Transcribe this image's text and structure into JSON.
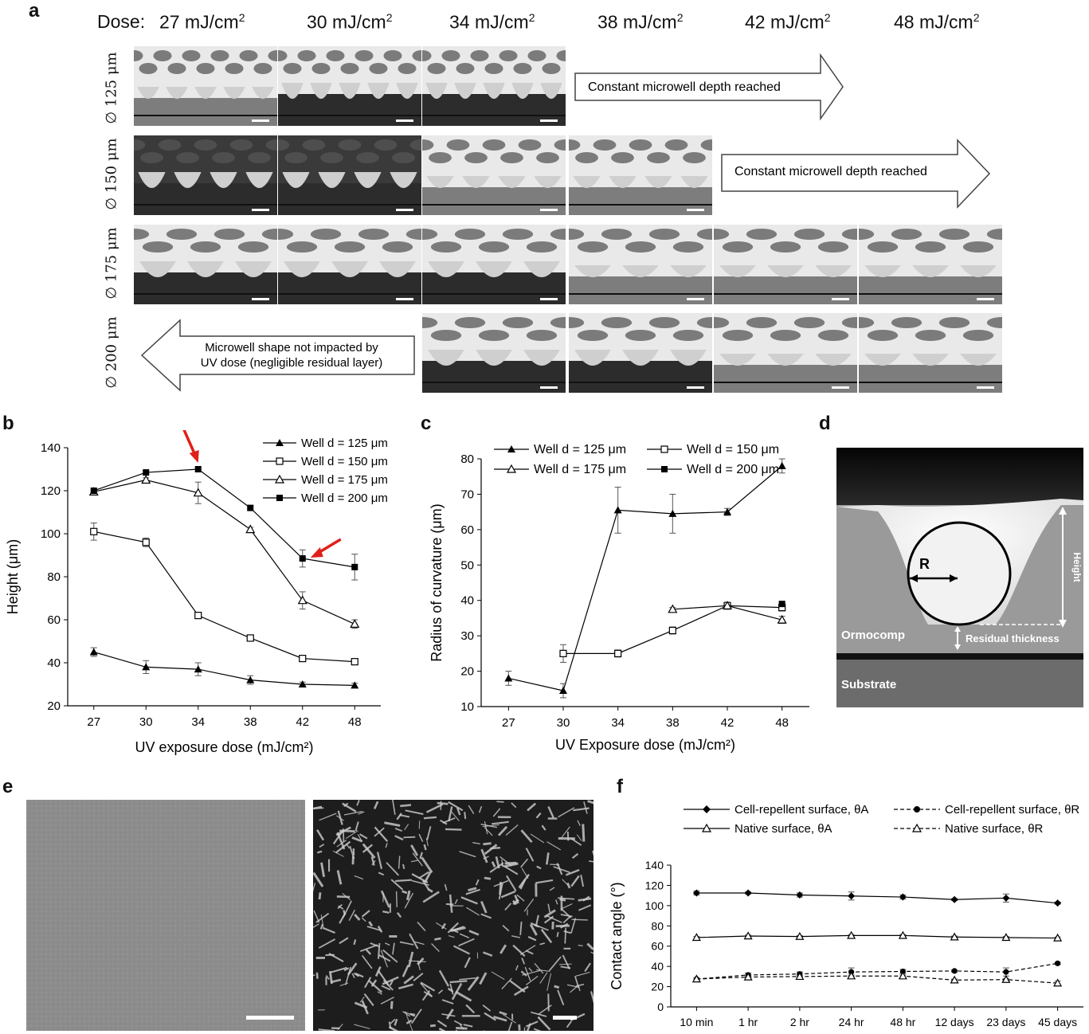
{
  "panel_labels": {
    "a": "a",
    "b": "b",
    "c": "c",
    "d": "d",
    "e": "e",
    "f": "f"
  },
  "panel_a": {
    "dose_prefix": "Dose:",
    "doses": [
      "27 mJ/cm",
      "30 mJ/cm",
      "34 mJ/cm",
      "38 mJ/cm",
      "42 mJ/cm",
      "48 mJ/cm"
    ],
    "dose_sup": "2",
    "rows": [
      "∅ 125 μm",
      "∅ 150 μm",
      "∅ 175 μm",
      "∅ 200 μm"
    ],
    "arrow_constant": "Constant microwell depth reached",
    "arrow_left_line1": "Microwell shape not impacted by",
    "arrow_left_line2": "UV dose (negligible residual layer)"
  },
  "panel_d": {
    "label_r": "R",
    "label_height": "Height",
    "label_ormocomp": "Ormocomp",
    "label_residual": "Residual thickness",
    "label_substrate": "Substrate"
  },
  "chart_data": [
    {
      "type": "line",
      "categories": [
        "27",
        "30",
        "34",
        "38",
        "42",
        "48"
      ],
      "ylabel": "Height (μm)",
      "xlabel": "UV exposure dose (mJ/cm²)",
      "ylim": [
        20,
        140
      ],
      "yticks": [
        "20",
        "40",
        "60",
        "80",
        "100",
        "120",
        "140"
      ],
      "legend_position": "top-right",
      "series": [
        {
          "name": "Well d = 125 μm",
          "marker": "filled-triangle",
          "values": [
            45,
            38,
            37,
            32,
            30,
            29.5
          ],
          "err": [
            2,
            3,
            3,
            2,
            1,
            1
          ]
        },
        {
          "name": "Well d = 150 μm",
          "marker": "open-square",
          "values": [
            101,
            96,
            62,
            51.5,
            42,
            40.5
          ],
          "err": [
            4,
            2,
            1,
            1,
            1,
            1
          ]
        },
        {
          "name": "Well d = 175 μm",
          "marker": "open-triangle",
          "values": [
            119.5,
            125,
            119,
            102,
            69,
            58
          ],
          "err": [
            1,
            1,
            5,
            1,
            4,
            2
          ]
        },
        {
          "name": "Well d = 200 μm",
          "marker": "filled-square",
          "values": [
            120,
            128.5,
            130,
            112,
            88.5,
            84.5
          ],
          "err": [
            1,
            1,
            1,
            1,
            4,
            6
          ]
        }
      ],
      "annotations": [
        {
          "type": "red-arrow",
          "category": "34",
          "value": 130
        },
        {
          "type": "red-arrow",
          "category": "42",
          "value": 88.5
        }
      ]
    },
    {
      "type": "line",
      "categories": [
        "27",
        "30",
        "34",
        "38",
        "42",
        "48"
      ],
      "ylabel": "Radius of curvature (μm)",
      "xlabel": "UV Exposure dose (mJ/cm²)",
      "ylim": [
        10,
        80
      ],
      "yticks": [
        "10",
        "20",
        "30",
        "40",
        "50",
        "60",
        "70",
        "80"
      ],
      "legend_position": "top",
      "series": [
        {
          "name": "Well d = 125 μm",
          "marker": "filled-triangle",
          "values": [
            18,
            14.5,
            65.5,
            64.5,
            65,
            78
          ],
          "err": [
            2,
            2,
            6.5,
            5.5,
            1,
            2
          ]
        },
        {
          "name": "Well d = 150 μm",
          "marker": "open-square",
          "values": [
            null,
            25,
            25,
            31.5,
            38.5,
            38
          ],
          "err": [
            0,
            2.5,
            1,
            1,
            1,
            1
          ]
        },
        {
          "name": "Well d = 175 μm",
          "marker": "open-triangle",
          "values": [
            null,
            null,
            null,
            37.5,
            38.5,
            34.5
          ],
          "err": [
            0,
            0,
            0,
            0.5,
            1,
            1
          ]
        },
        {
          "name": "Well d = 200 μm",
          "marker": "filled-square",
          "values": [
            null,
            null,
            null,
            null,
            null,
            39
          ],
          "err": [
            0,
            0,
            0,
            0,
            0,
            0.5
          ]
        }
      ]
    },
    {
      "type": "line",
      "categories": [
        "10 min",
        "1 hr",
        "2 hr",
        "24 hr",
        "48 hr",
        "12 days",
        "23 days",
        "45 days"
      ],
      "ylabel": "Contact angle (°)",
      "xlabel": "",
      "ylim": [
        0,
        140
      ],
      "yticks": [
        "0",
        "20",
        "40",
        "60",
        "80",
        "100",
        "120",
        "140"
      ],
      "legend_position": "top",
      "series": [
        {
          "name": "Cell-repellent surface, θA",
          "marker": "filled-diamond",
          "dashed": false,
          "values": [
            112.5,
            112.5,
            110.5,
            109.5,
            108.5,
            106,
            107.5,
            102.5
          ],
          "err": [
            2,
            1,
            2,
            4,
            2,
            1,
            4,
            1
          ]
        },
        {
          "name": "Cell-repellent surface, θR",
          "marker": "filled-circle",
          "dashed": true,
          "values": [
            27.5,
            31.5,
            32.5,
            34.5,
            35,
            35.5,
            34.5,
            43
          ],
          "err": [
            1,
            2,
            2,
            4,
            2,
            1,
            4,
            1
          ]
        },
        {
          "name": "Native surface, θA",
          "marker": "open-triangle",
          "dashed": false,
          "values": [
            68.5,
            70,
            69.5,
            70.5,
            70.5,
            69,
            68.5,
            68
          ],
          "err": [
            1,
            1,
            1,
            1,
            1,
            1,
            1,
            1
          ]
        },
        {
          "name": "Native surface, θR",
          "marker": "open-triangle",
          "dashed": true,
          "values": [
            27.5,
            29.5,
            30,
            30.5,
            30.5,
            26.5,
            27,
            23.5
          ],
          "err": [
            1,
            1,
            1,
            1,
            1,
            1,
            1,
            2
          ]
        }
      ]
    }
  ]
}
